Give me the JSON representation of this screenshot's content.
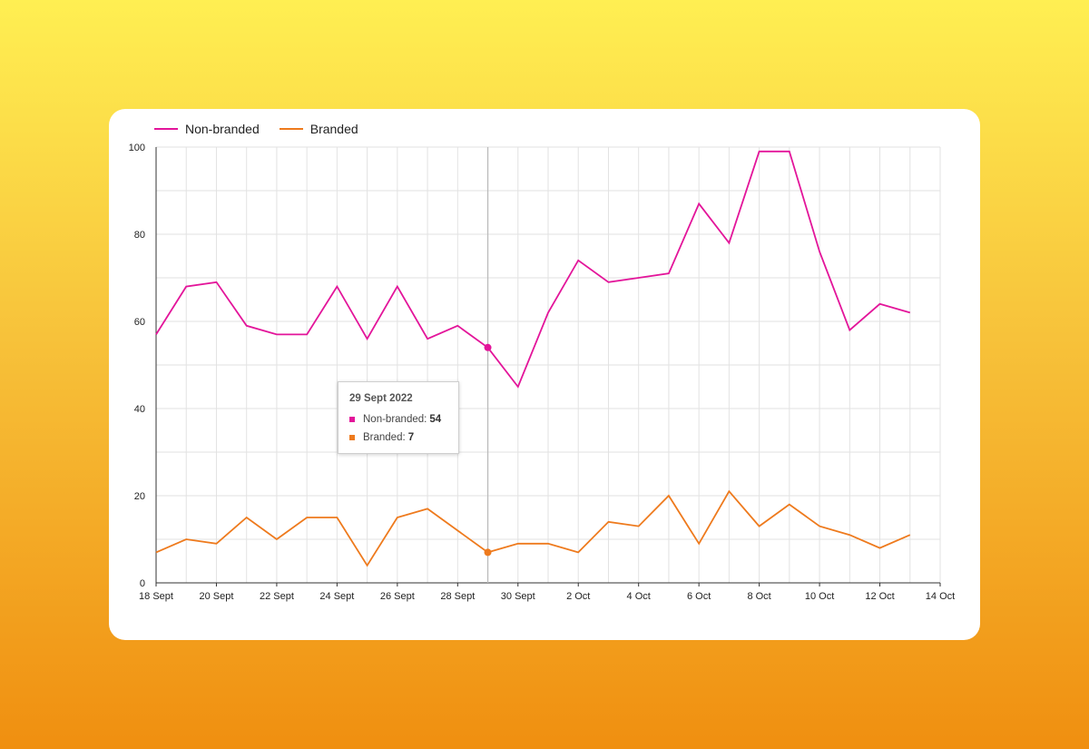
{
  "chart_data": {
    "type": "line",
    "x": [
      "18 Sept",
      "19 Sept",
      "20 Sept",
      "21 Sept",
      "22 Sept",
      "23 Sept",
      "24 Sept",
      "25 Sept",
      "26 Sept",
      "27 Sept",
      "28 Sept",
      "29 Sept",
      "30 Sept",
      "1 Oct",
      "2 Oct",
      "3 Oct",
      "4 Oct",
      "5 Oct",
      "6 Oct",
      "7 Oct",
      "8 Oct",
      "9 Oct",
      "10 Oct",
      "11 Oct",
      "12 Oct",
      "13 Oct"
    ],
    "xticks": [
      "18 Sept",
      "20 Sept",
      "22 Sept",
      "24 Sept",
      "26 Sept",
      "28 Sept",
      "30 Sept",
      "2 Oct",
      "4 Oct",
      "6 Oct",
      "8 Oct",
      "10 Oct",
      "12 Oct",
      "14 Oct"
    ],
    "yticks": [
      "0",
      "20",
      "40",
      "60",
      "80",
      "100"
    ],
    "ylim": [
      0,
      100
    ],
    "grid": true,
    "legend_position": "top-left",
    "series": [
      {
        "name": "Non-branded",
        "color": "#e3159a",
        "values": [
          57,
          68,
          69,
          59,
          57,
          57,
          68,
          56,
          68,
          56,
          59,
          54,
          45,
          62,
          74,
          69,
          70,
          71,
          87,
          78,
          99,
          99,
          76,
          58,
          64,
          62
        ]
      },
      {
        "name": "Branded",
        "color": "#ee7a1d",
        "values": [
          7,
          10,
          9,
          15,
          10,
          15,
          15,
          4,
          15,
          17,
          12,
          7,
          9,
          9,
          7,
          14,
          13,
          20,
          9,
          21,
          13,
          18,
          13,
          11,
          8,
          11
        ]
      }
    ],
    "tooltip": {
      "date": "29 Sept 2022",
      "rows": [
        {
          "label": "Non-branded:",
          "value": "54",
          "color": "#e3159a"
        },
        {
          "label": "Branded:",
          "value": "7",
          "color": "#ee7a1d"
        }
      ]
    },
    "highlight_index": 11
  }
}
